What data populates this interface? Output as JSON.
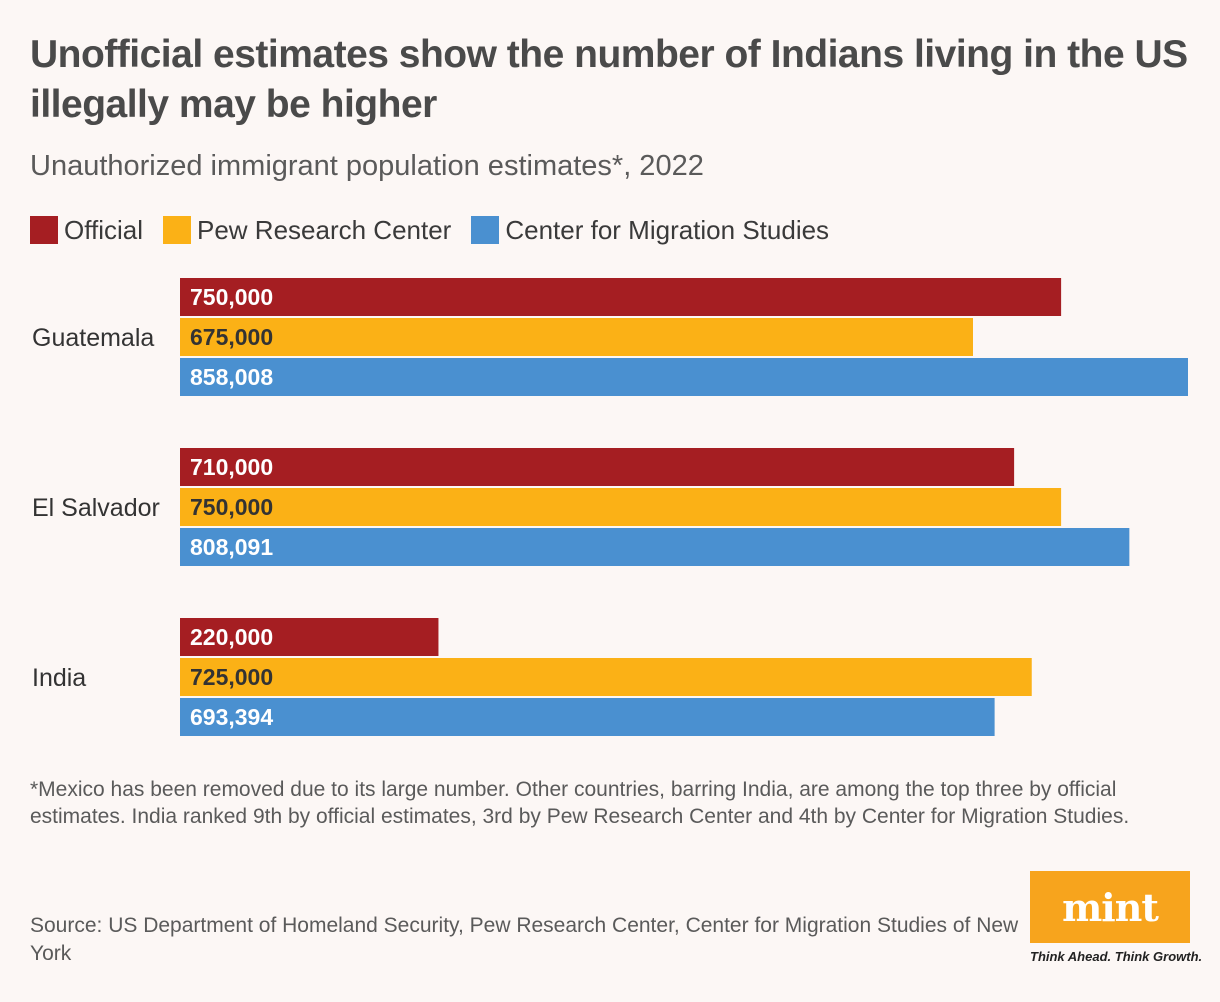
{
  "title": "Unofficial estimates show the number of Indians living in the US illegally may be higher",
  "subtitle": "Unauthorized immigrant population estimates*, 2022",
  "legend": [
    {
      "label": "Official",
      "color": "#a51e22"
    },
    {
      "label": "Pew Research Center",
      "color": "#fbb116"
    },
    {
      "label": "Center for Migration Studies",
      "color": "#4a90d0"
    }
  ],
  "chart_data": {
    "type": "bar",
    "orientation": "horizontal",
    "title": "Unofficial estimates show the number of Indians living in the US illegally may be higher",
    "subtitle": "Unauthorized immigrant population estimates*, 2022",
    "categories": [
      "Guatemala",
      "El Salvador",
      "India"
    ],
    "series": [
      {
        "name": "Official",
        "color": "#a51e22",
        "label_color": "#ffffff",
        "values": [
          750000,
          710000,
          220000
        ],
        "labels": [
          "750,000",
          "710,000",
          "220,000"
        ]
      },
      {
        "name": "Pew Research Center",
        "color": "#fbb116",
        "label_color": "#333333",
        "values": [
          675000,
          750000,
          725000
        ],
        "labels": [
          "675,000",
          "750,000",
          "725,000"
        ]
      },
      {
        "name": "Center for Migration Studies",
        "color": "#4a90d0",
        "label_color": "#ffffff",
        "values": [
          858008,
          808091,
          693394
        ],
        "labels": [
          "858,008",
          "808,091",
          "693,394"
        ]
      }
    ],
    "xlim": [
      0,
      858008
    ],
    "grid": false,
    "legend_position": "top-left"
  },
  "footnote": "*Mexico has been removed due to its large number. Other countries, barring India, are among the top three by official estimates. India ranked 9th by official estimates, 3rd by Pew Research Center and 4th by Center for Migration Studies.",
  "source": "Source: US Department of Homeland Security, Pew Research Center, Center for Migration Studies of New York",
  "logo": {
    "wordmark": "mint",
    "tagline": "Think Ahead. Think Growth.",
    "color": "#f7a41d"
  }
}
